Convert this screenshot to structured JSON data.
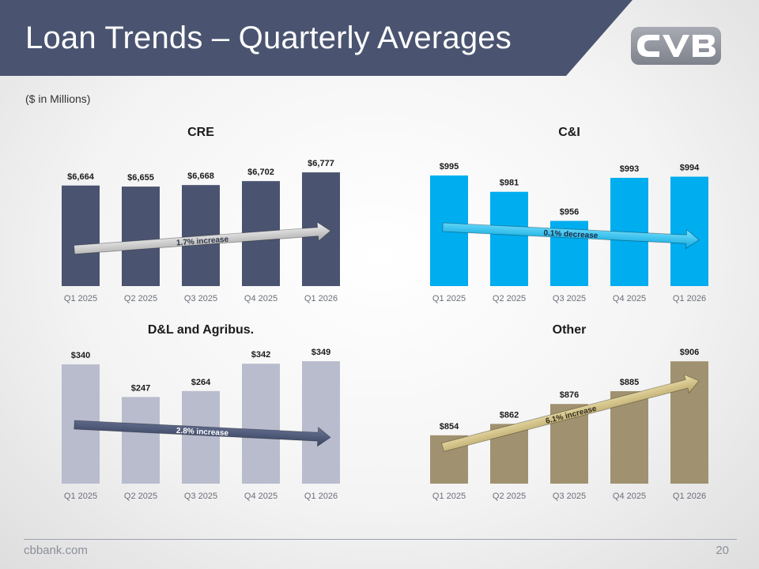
{
  "header": {
    "title": "Loan Trends – Quarterly Averages"
  },
  "brand": {
    "logo_text": "CVB"
  },
  "subtitle": "($ in Millions)",
  "colors": {
    "header_bg": "#4a5470",
    "cre": "#4a5470",
    "ci": "#00adef",
    "dl": "#b8bccd",
    "other": "#a09270"
  },
  "chart_data": [
    {
      "type": "bar",
      "title": "CRE",
      "categories": [
        "Q1 2025",
        "Q2 2025",
        "Q3 2025",
        "Q4 2025",
        "Q1 2026"
      ],
      "values": [
        6664,
        6655,
        6668,
        6702,
        6777
      ],
      "value_labels": [
        "$6,664",
        "$6,655",
        "$6,668",
        "$6,702",
        "$6,777"
      ],
      "ylim": [
        5800,
        6900
      ],
      "trend": {
        "label": "1.7% increase",
        "style": "silver"
      }
    },
    {
      "type": "bar",
      "title": "C&I",
      "categories": [
        "Q1 2025",
        "Q2 2025",
        "Q3 2025",
        "Q4 2025",
        "Q1 2026"
      ],
      "values": [
        995,
        981,
        956,
        993,
        994
      ],
      "value_labels": [
        "$995",
        "$981",
        "$956",
        "$993",
        "$994"
      ],
      "ylim": [
        900,
        1010
      ],
      "trend": {
        "label": "0.1% decrease",
        "style": "cyan"
      }
    },
    {
      "type": "bar",
      "title": "D&L and Agribus.",
      "categories": [
        "Q1 2025",
        "Q2 2025",
        "Q3 2025",
        "Q4 2025",
        "Q1 2026"
      ],
      "values": [
        340,
        247,
        264,
        342,
        349
      ],
      "value_labels": [
        "$340",
        "$247",
        "$264",
        "$342",
        "$349"
      ],
      "ylim": [
        0,
        365
      ],
      "trend": {
        "label": "2.8% increase",
        "style": "navy"
      }
    },
    {
      "type": "bar",
      "title": "Other",
      "categories": [
        "Q1 2025",
        "Q2 2025",
        "Q3 2025",
        "Q4 2025",
        "Q1 2026"
      ],
      "values": [
        854,
        862,
        876,
        885,
        906
      ],
      "value_labels": [
        "$854",
        "$862",
        "$876",
        "$885",
        "$906"
      ],
      "ylim": [
        820,
        910
      ],
      "trend": {
        "label": "6.1% increase",
        "style": "khaki"
      }
    }
  ],
  "footer": {
    "url": "cbbank.com",
    "page_number": "20"
  }
}
